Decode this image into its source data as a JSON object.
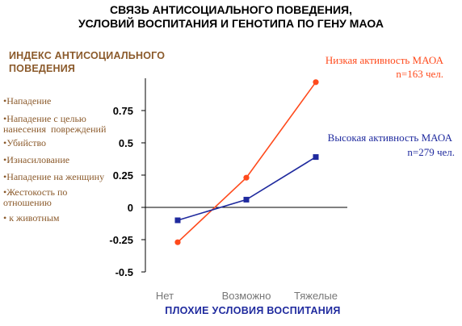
{
  "title_lines": [
    "СВЯЗЬ АНТИСОЦИАЛЬНОГО ПОВЕДЕНИЯ,",
    "УСЛОВИЙ ВОСПИТАНИЯ И ГЕНОТИПА ПО ГЕНУ МАОА"
  ],
  "y_axis_title_lines": [
    "ИНДЕКС АНТИСОЦИАЛЬНОГО",
    "ПОВЕДЕНИЯ"
  ],
  "measures": [
    "•Нападение",
    "•Нападение с целью\nнанесения  повреждений",
    "•Убийство",
    "•Изнасилование",
    "•Нападение на женщину",
    "•Жестокость по\nотношению",
    "• к животным"
  ],
  "colors": {
    "low_activity": "#ff4a1c",
    "high_activity": "#1f2a9e",
    "axis_title": "#1f2a9e",
    "side_text": "#8b5a2b",
    "axes": "#000000"
  },
  "chart_data": {
    "type": "line",
    "title": "",
    "xlabel": "ПЛОХИЕ УСЛОВИЯ ВОСПИТАНИЯ",
    "ylabel": "",
    "categories": [
      "Нет",
      "Возможно",
      "Тяжелые"
    ],
    "y_ticks": [
      -0.5,
      -0.25,
      0,
      0.25,
      0.5,
      0.75
    ],
    "y_tick_labels": [
      "-0.5",
      "-0.25",
      "0",
      "0.25",
      "0.5",
      "0.75"
    ],
    "ylim": [
      -0.5,
      1.0
    ],
    "grid": false,
    "series": [
      {
        "name": "Низкая активность МАОА",
        "n_label": "n=163 чел.",
        "marker": "circle",
        "color": "#ff4a1c",
        "values": [
          -0.27,
          0.23,
          0.97
        ]
      },
      {
        "name": "Высокая активность МАОА",
        "n_label": "n=279 чел.",
        "marker": "square",
        "color": "#1f2a9e",
        "values": [
          -0.1,
          0.06,
          0.39
        ]
      }
    ]
  }
}
